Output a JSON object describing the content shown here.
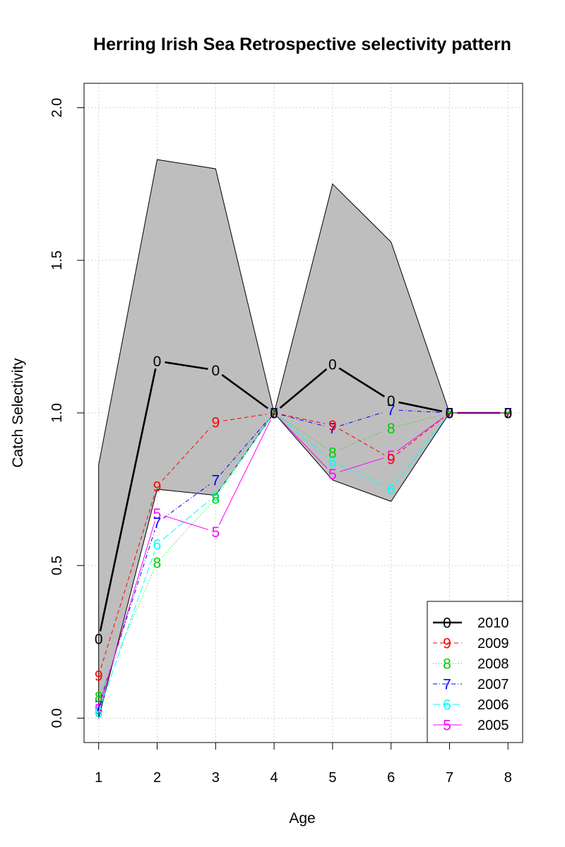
{
  "chart_data": {
    "type": "line",
    "title": "Herring Irish Sea Retrospective selectivity pattern",
    "xlabel": "Age",
    "ylabel": "Catch Selectivity",
    "x": [
      1,
      2,
      3,
      4,
      5,
      6,
      7,
      8
    ],
    "x_ticks": [
      "1",
      "2",
      "3",
      "4",
      "5",
      "6",
      "7",
      "8"
    ],
    "y_ticks": [
      "0.0",
      "0.5",
      "1.0",
      "1.5",
      "2.0"
    ],
    "xlim": [
      0.75,
      8.25
    ],
    "ylim": [
      -0.08,
      2.08
    ],
    "grid": true,
    "legend_position": "bottom-right",
    "band": {
      "upper": [
        0.83,
        1.83,
        1.8,
        1.0,
        1.75,
        1.56,
        1.0,
        1.0
      ],
      "lower": [
        0.0,
        0.75,
        0.73,
        1.0,
        0.78,
        0.71,
        1.0,
        1.0
      ],
      "color": "#bebebe"
    },
    "series": [
      {
        "name": "2010",
        "marker": "0",
        "color": "#000000",
        "dash": "",
        "width": 2.6,
        "values": [
          0.26,
          1.17,
          1.14,
          1.0,
          1.16,
          1.04,
          1.0,
          1.0
        ]
      },
      {
        "name": "2009",
        "marker": "9",
        "color": "#ff0000",
        "dash": "6,4",
        "width": 1,
        "values": [
          0.14,
          0.76,
          0.97,
          1.0,
          0.96,
          0.85,
          1.0,
          1.0
        ]
      },
      {
        "name": "2008",
        "marker": "8",
        "color": "#00cd00",
        "dash": "1,3",
        "width": 1,
        "values": [
          0.07,
          0.51,
          0.72,
          1.0,
          0.87,
          0.95,
          1.0,
          1.0
        ]
      },
      {
        "name": "2007",
        "marker": "7",
        "color": "#0000ff",
        "dash": "6,3,1,3",
        "width": 1,
        "values": [
          0.04,
          0.64,
          0.78,
          1.0,
          0.95,
          1.01,
          1.0,
          1.0
        ]
      },
      {
        "name": "2006",
        "marker": "6",
        "color": "#00ffff",
        "dash": "10,4",
        "width": 1,
        "values": [
          0.02,
          0.57,
          0.73,
          1.0,
          0.84,
          0.75,
          1.0,
          1.0
        ]
      },
      {
        "name": "2005",
        "marker": "5",
        "color": "#ff00ff",
        "dash": "",
        "width": 1,
        "values": [
          0.03,
          0.67,
          0.61,
          1.0,
          0.8,
          0.86,
          1.0,
          1.0
        ]
      }
    ]
  }
}
